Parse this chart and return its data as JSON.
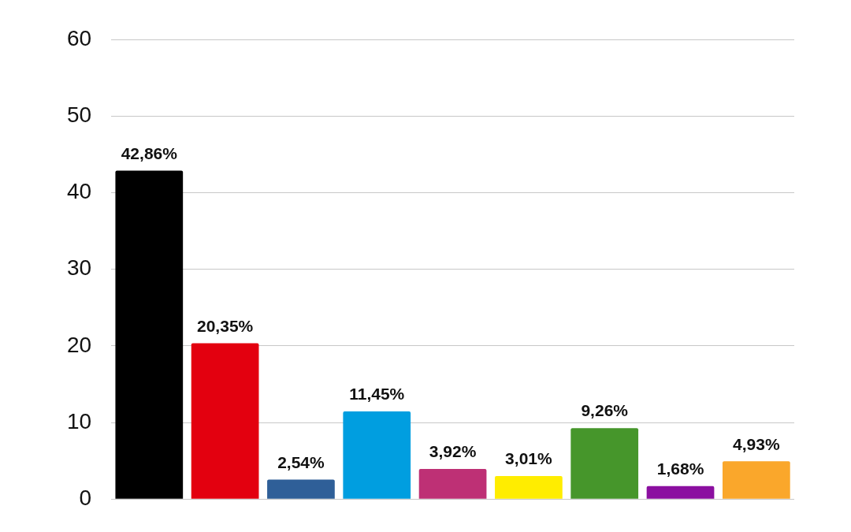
{
  "chart_data": {
    "type": "bar",
    "categories": [
      null,
      null,
      null,
      null,
      null,
      null,
      null,
      null,
      null
    ],
    "values": [
      42.86,
      20.35,
      2.54,
      11.45,
      3.92,
      3.01,
      9.26,
      1.68,
      4.93
    ],
    "colors": [
      "#000000",
      "#e3000f",
      "#2f5f98",
      "#009ee0",
      "#be3075",
      "#ffed00",
      "#46962b",
      "#8b0fa0",
      "#faa72b"
    ],
    "value_labels": [
      "42,86%",
      "20,35%",
      "2,54%",
      "11,45%",
      "3,92%",
      "3,01%",
      "9,26%",
      "1,68%",
      "4,93%"
    ],
    "ylim": [
      0,
      60
    ],
    "yticks": [
      0,
      10,
      20,
      30,
      40,
      50,
      60
    ],
    "grid": "y",
    "legend": false,
    "tick_labels": "y"
  }
}
